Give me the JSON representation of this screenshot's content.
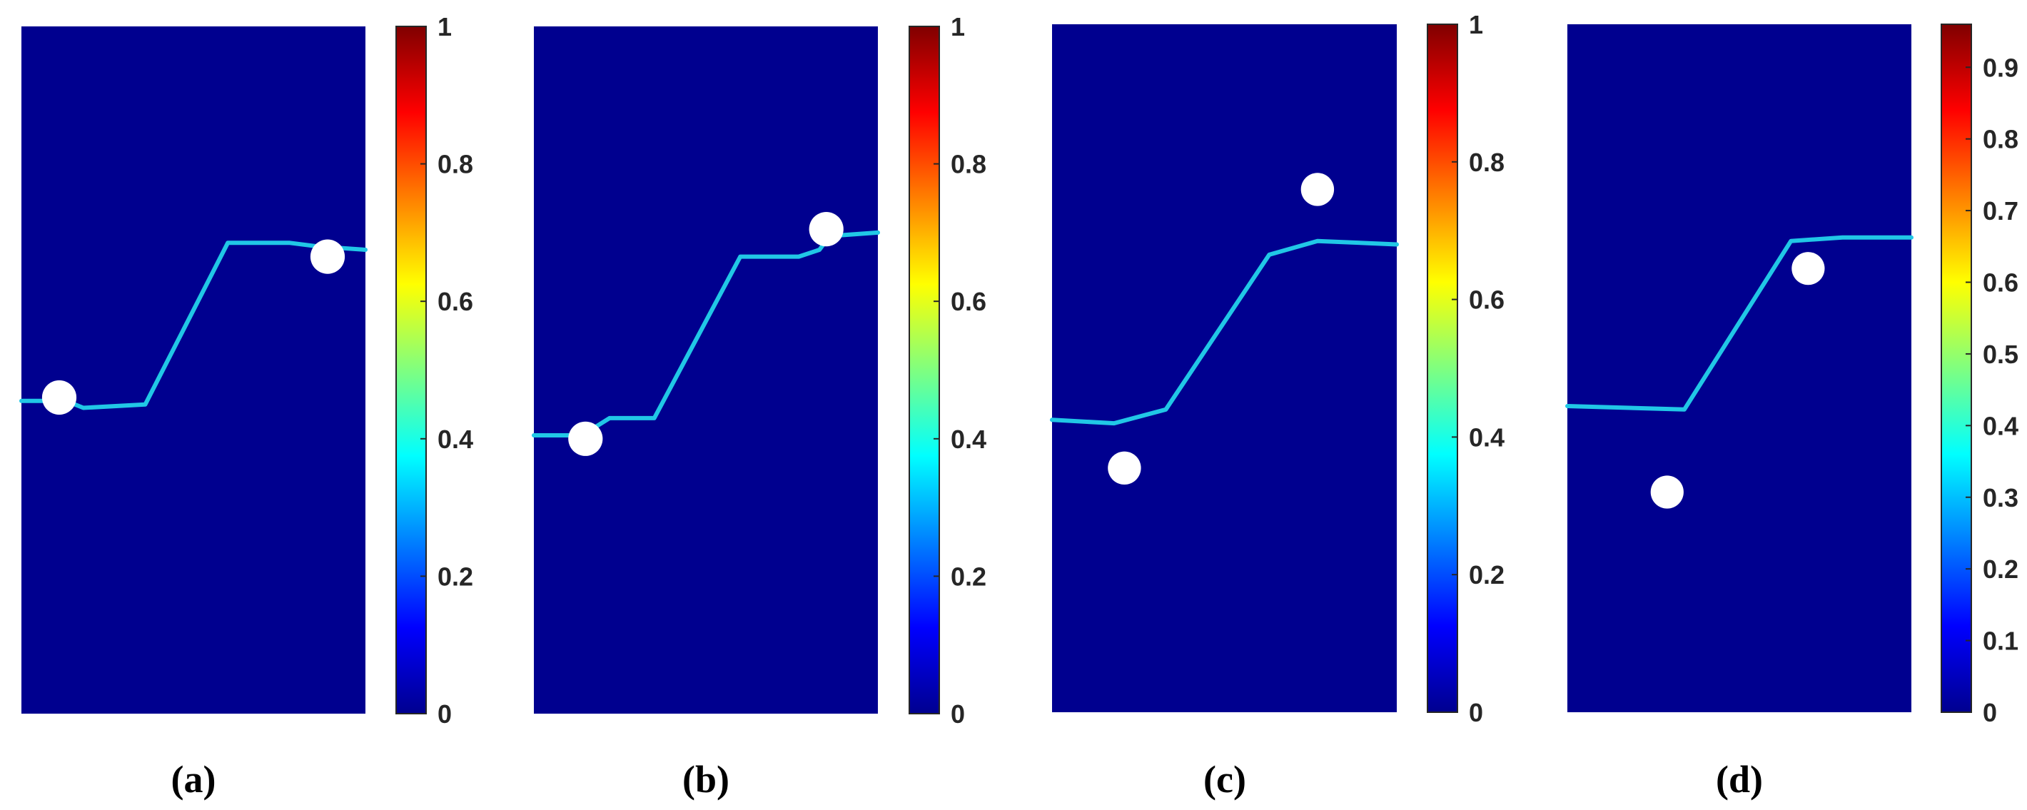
{
  "chart_data": [
    {
      "type": "heatmap",
      "caption": "(a)",
      "background_color": "#00008f",
      "colorbar": {
        "ticks": [
          "0",
          "0.2",
          "0.4",
          "0.6",
          "0.8",
          "1"
        ],
        "tick_values": [
          0,
          0.2,
          0.4,
          0.6,
          0.8,
          1
        ],
        "max": 1
      },
      "crack_path": {
        "x": [
          0,
          0.13,
          0.18,
          0.36,
          0.6,
          0.78,
          0.86,
          1
        ],
        "y": [
          0.455,
          0.455,
          0.445,
          0.45,
          0.685,
          0.685,
          0.68,
          0.675
        ]
      },
      "holes": [
        {
          "x": 0.11,
          "y": 0.46,
          "r": 0.05
        },
        {
          "x": 0.89,
          "y": 0.665,
          "r": 0.05
        }
      ]
    },
    {
      "type": "heatmap",
      "caption": "(b)",
      "background_color": "#00008f",
      "colorbar": {
        "ticks": [
          "0",
          "0.2",
          "0.4",
          "0.6",
          "0.8",
          "1"
        ],
        "tick_values": [
          0,
          0.2,
          0.4,
          0.6,
          0.8,
          1
        ],
        "max": 1
      },
      "crack_path": {
        "x": [
          0,
          0.14,
          0.22,
          0.35,
          0.6,
          0.77,
          0.83,
          0.86,
          1
        ],
        "y": [
          0.405,
          0.405,
          0.43,
          0.43,
          0.665,
          0.665,
          0.675,
          0.695,
          0.7
        ]
      },
      "holes": [
        {
          "x": 0.15,
          "y": 0.4,
          "r": 0.05
        },
        {
          "x": 0.85,
          "y": 0.705,
          "r": 0.05
        }
      ]
    },
    {
      "type": "heatmap",
      "caption": "(c)",
      "background_color": "#00008f",
      "colorbar": {
        "ticks": [
          "0",
          "0.2",
          "0.4",
          "0.6",
          "0.8",
          "1"
        ],
        "tick_values": [
          0,
          0.2,
          0.4,
          0.6,
          0.8,
          1
        ],
        "max": 1
      },
      "crack_path": {
        "x": [
          0,
          0.18,
          0.33,
          0.63,
          0.77,
          1
        ],
        "y": [
          0.425,
          0.42,
          0.44,
          0.665,
          0.685,
          0.68
        ]
      },
      "holes": [
        {
          "x": 0.21,
          "y": 0.355,
          "r": 0.048
        },
        {
          "x": 0.77,
          "y": 0.76,
          "r": 0.048
        }
      ]
    },
    {
      "type": "heatmap",
      "caption": "(d)",
      "background_color": "#00008f",
      "colorbar": {
        "ticks": [
          "0",
          "0.1",
          "0.2",
          "0.3",
          "0.4",
          "0.5",
          "0.6",
          "0.7",
          "0.8",
          "0.9"
        ],
        "tick_values": [
          0,
          0.1,
          0.2,
          0.3,
          0.4,
          0.5,
          0.6,
          0.7,
          0.8,
          0.9
        ],
        "max": 0.96
      },
      "crack_path": {
        "x": [
          0,
          0.34,
          0.65,
          0.8,
          1
        ],
        "y": [
          0.445,
          0.44,
          0.685,
          0.69,
          0.69
        ]
      },
      "holes": [
        {
          "x": 0.29,
          "y": 0.32,
          "r": 0.048
        },
        {
          "x": 0.7,
          "y": 0.645,
          "r": 0.048
        }
      ]
    }
  ]
}
